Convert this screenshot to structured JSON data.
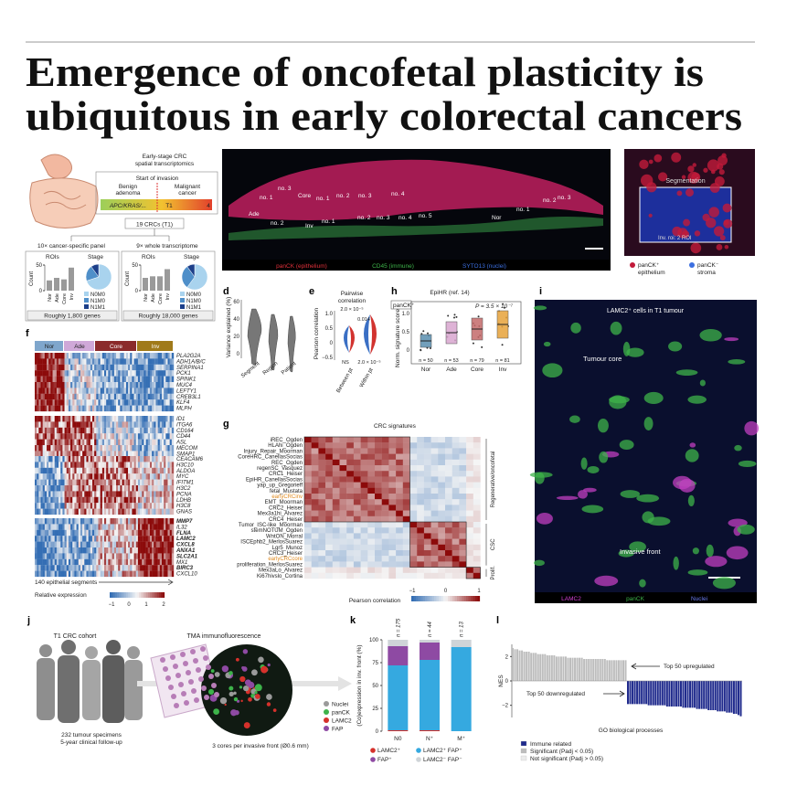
{
  "header": {
    "title_lines": [
      "Emergence of oncofetal plasticity is",
      "ubiquitous in early colorectal cancers"
    ]
  },
  "panel_labels": [
    "d",
    "e",
    "f",
    "g",
    "h",
    "i",
    "j",
    "k",
    "l"
  ],
  "panel_a": {
    "heading": [
      "Early-stage CRC",
      "spatial transcriptomics"
    ],
    "invasion": "Start of invasion",
    "benign": [
      "Benign",
      "adenoma"
    ],
    "malignant": [
      "Malignant",
      "cancer"
    ],
    "mutations": "APC/KRAS/...",
    "t1": "T1",
    "t4": "4",
    "cohort": "19 CRCs (T1)",
    "panels": [
      {
        "name": "10× cancer-specific panel",
        "genes": "Roughly 1,800 genes",
        "counts": [
          20,
          25,
          22,
          45
        ],
        "stage_shares": [
          70,
          20,
          10
        ]
      },
      {
        "name": "9× whole transcriptome",
        "genes": "Roughly 18,000 genes",
        "counts": [
          25,
          28,
          28,
          42
        ],
        "stage_shares": [
          60,
          30,
          10
        ]
      }
    ],
    "rois": "ROIs",
    "stage": "Stage",
    "count": "Count",
    "count_lim": [
      0,
      50
    ],
    "count_ticks": [
      0,
      50
    ],
    "regions": [
      "Nor",
      "Ade",
      "Core",
      "Inv"
    ],
    "stages": [
      "N0M0",
      "N1M0",
      "N1M1"
    ],
    "stage_colors": [
      "#a9d3ee",
      "#4f8fc9",
      "#1c3f8a"
    ]
  },
  "panel_b": {
    "labels": [
      "no. 1",
      "no. 3",
      "Ade",
      "no. 2",
      "Core",
      "no. 1",
      "no. 2",
      "no. 3",
      "no. 4",
      "Inv",
      "no. 1",
      "no. 2",
      "no. 3",
      "no. 4",
      "no. 5",
      "Nor",
      "no. 1",
      "no. 2",
      "no. 3"
    ],
    "legend": [
      "panCK (epithelium)",
      "CD45 (immune)",
      "SYTO13 (nuclei)"
    ]
  },
  "panel_c": {
    "segmentation": "Segmentation",
    "roi": "Inv. roi: 2 ROI",
    "legend": [
      [
        "panCK⁺",
        "epithelium"
      ],
      [
        "panCK⁻",
        "stroma"
      ]
    ]
  },
  "panel_d": {
    "ylabel": "Variance explained (%)",
    "ticks": [
      "60",
      "40",
      "20",
      "0"
    ],
    "categories": [
      "Segment",
      "Region",
      "Patient"
    ]
  },
  "panel_e": {
    "title": [
      "Pairwise",
      "correlation"
    ],
    "ylabel": "Pearson correlation",
    "ticks": [
      "1.0",
      "0.5",
      "0",
      "−0.5"
    ],
    "pvalues": [
      "2.0 × 10⁻⁵",
      "0.014",
      "NS",
      "2.0 × 10⁻⁵"
    ],
    "categories": [
      "Between pt",
      "Within pt"
    ]
  },
  "panel_h": {
    "title": "EpiHR (ref. 14)",
    "tag": "panCK⁺",
    "pvalue": "P = 3.5 × 10⁻⁷",
    "ylabel": "Norm. signature score",
    "ticks": [
      "1.0",
      "0.5",
      "0"
    ],
    "categories": [
      "Nor",
      "Ade",
      "Core",
      "Inv"
    ],
    "n": [
      "n = 50",
      "n = 53",
      "n = 79",
      "n = 81"
    ]
  },
  "panel_f": {
    "headers": [
      "Nor",
      "Ade",
      "Core",
      "Inv"
    ],
    "groups": [
      [
        "PLA2G2A",
        "ADH1A/B/C",
        "SERPINA1",
        "PCK1",
        "SPINK1",
        "MUC4",
        "LEFTY1",
        "CREB3L1",
        "KLF4",
        "MLPH"
      ],
      [
        "ID1",
        "ITGA6",
        "CD164",
        "CD44",
        "ASL",
        "MECOM",
        "SMAP1"
      ],
      [
        "CEACAM6",
        "H3C10",
        "ALDOA",
        "MYC",
        "IFITM1",
        "H3C2",
        "PCNA",
        "LDHB",
        "H3C8",
        "GNAS"
      ],
      [
        "MMP7",
        "IL32",
        "FLNA",
        "LAMC2",
        "CXCL8",
        "ANXA1",
        "SLC2A1",
        "MX1",
        "BIRC3",
        "CXCL10"
      ]
    ],
    "segments": "140 epithelial segments",
    "legend_title": "Relative expression",
    "legend_ticks": [
      "−1",
      "0",
      "1",
      "2"
    ]
  },
  "panel_g": {
    "title": "CRC signatures",
    "signatures": [
      "iREC_Ogden",
      "HLAhi_Ogden",
      "Injury_Repair_Moorman",
      "CoreHRC_CanellasSocias",
      "REC_Ogden",
      "regenSC_Vasquez",
      "CRC1_Heiser",
      "EpiHR_CanellasSocias",
      "yap_up_Gregorieff",
      "fetal_Mustata",
      "earlyCRCinv",
      "EMT_Moorman",
      "CRC2_Heiser",
      "Mex3a1hi_Alvarez",
      "CRC4_Heiser",
      "Tumor_ISC-like_Moorman",
      "stemNOTUM_Ogden",
      "WntON_Morral",
      "ISCEphb2_MerlosSuarez",
      "Lgr5_Munoz",
      "CRC3_Heiser",
      "earlyCRCcore",
      "proliferation_MerlosSuarez",
      "Mex3aLo_Alvarez",
      "Ki67hivslo_Cortina"
    ],
    "groups": [
      "Regenerative/oncofetal",
      "CSC",
      "Prolif."
    ],
    "legend_title": "Pearson correlation",
    "legend_ticks": [
      "−1",
      "0",
      "1"
    ]
  },
  "panel_i": {
    "title": "LAMC2⁺ cells in T1 tumour",
    "core": "Tumour core",
    "front": "Invasive front",
    "legend": [
      "LAMC2",
      "panCK",
      "Nuclei"
    ]
  },
  "panel_j": {
    "cohort": "T1 CRC cohort",
    "tma": "TMA immunofluorescence",
    "specimens": "232 tumour specimens",
    "followup": "5-year clinical follow-up",
    "cores": "3 cores per invasive front (Ø0.6 mm)",
    "legend": [
      "Nuclei",
      "panCK",
      "LAMC2",
      "FAP"
    ]
  },
  "panel_k": {
    "chart_data": {
      "type": "bar",
      "stacked": true,
      "ylabel": "(Co)expression in inv. front (%)",
      "categories": [
        "N0",
        "N⁺",
        "M⁺"
      ],
      "n_labels": [
        "n = 175",
        "n = 44",
        "n = 13"
      ],
      "ylim": [
        0,
        100
      ],
      "yticks": [
        0,
        25,
        50,
        75,
        100
      ],
      "series": [
        {
          "name": "LAMC2⁺",
          "color": "#d6312b",
          "values": [
            1,
            1,
            0
          ]
        },
        {
          "name": "LAMC2⁺ FAP⁺",
          "color": "#35a9e0",
          "values": [
            71,
            77,
            92
          ]
        },
        {
          "name": "FAP⁺",
          "color": "#8e4aa3",
          "values": [
            21,
            19,
            0
          ]
        },
        {
          "name": "LAMC2⁻ FAP⁻",
          "color": "#cfd4d8",
          "values": [
            7,
            3,
            8
          ]
        }
      ]
    }
  },
  "panel_l": {
    "chart_data": {
      "type": "bar",
      "ylabel": "NES",
      "xlabel": "GO biological processes",
      "up_label": "Top 50 upregulated",
      "down_label": "Top 50 downregulated",
      "ylim": [
        -3,
        3
      ],
      "yticks": [
        {
          "value": -2,
          "label": "−2"
        },
        0,
        2
      ],
      "series": [
        {
          "name": "Significant (Padj < 0.05)",
          "color": "#bdbdbd",
          "values": [
            2.7,
            2.6,
            2.6,
            2.5,
            2.5,
            2.4,
            2.4,
            2.4,
            2.3,
            2.3,
            2.3,
            2.2,
            2.2,
            2.2,
            2.2,
            2.1,
            2.1,
            2.1,
            2.1,
            2.0,
            2.0,
            2.0,
            2.0,
            2.0,
            1.9,
            1.9,
            1.9,
            1.9,
            1.9,
            1.9,
            1.9,
            1.8,
            1.8,
            1.8,
            1.8,
            1.8,
            1.8,
            1.8,
            1.8,
            1.8,
            1.8,
            1.7,
            1.7,
            1.7,
            1.7,
            1.7,
            1.7,
            1.7,
            1.7,
            1.7
          ]
        },
        {
          "name": "Immune related",
          "color": "#1f2a8c",
          "values": [
            -1.9,
            -1.9,
            -1.9,
            -1.9,
            -1.9,
            -1.9,
            -1.9,
            -1.9,
            -1.9,
            -2.0,
            -2.0,
            -2.0,
            -2.0,
            -2.0,
            -2.0,
            -2.0,
            -2.0,
            -2.1,
            -2.1,
            -2.1,
            -2.1,
            -2.1,
            -2.1,
            -2.1,
            -2.2,
            -2.2,
            -2.2,
            -2.2,
            -2.2,
            -2.2,
            -2.3,
            -2.3,
            -2.3,
            -2.3,
            -2.3,
            -2.4,
            -2.4,
            -2.4,
            -2.4,
            -2.5,
            -2.5,
            -2.5,
            -2.5,
            -2.6,
            -2.6,
            -2.6,
            -2.7,
            -2.7,
            -2.8,
            -2.9
          ]
        },
        {
          "name": "Not significant (Padj > 0.05)",
          "color": "#ececec",
          "values": []
        }
      ]
    }
  }
}
